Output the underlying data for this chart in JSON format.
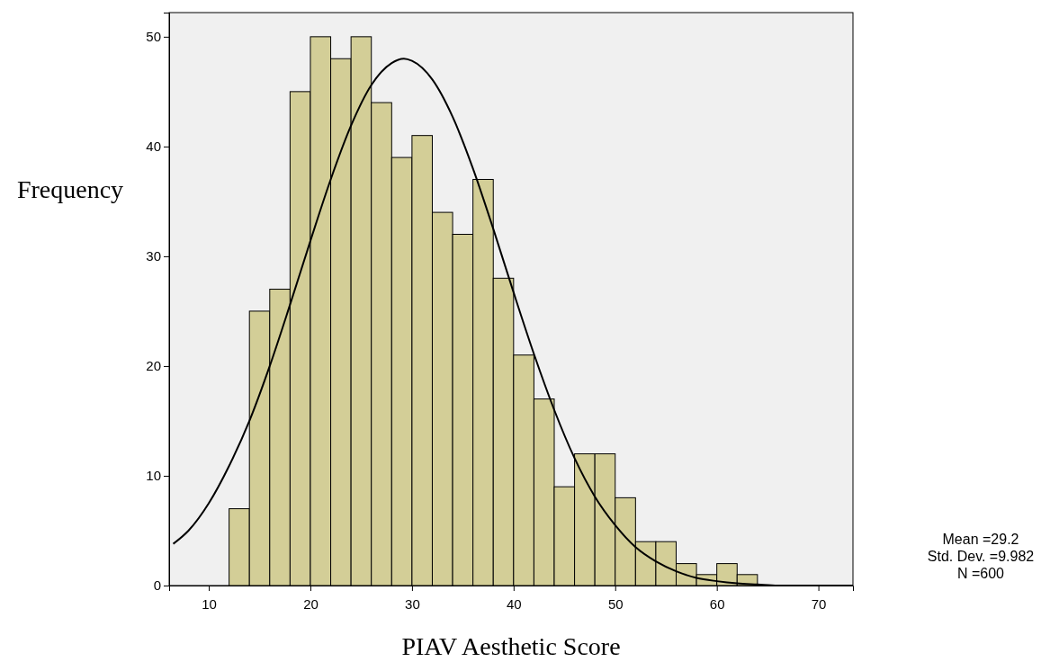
{
  "chart_data": {
    "type": "histogram",
    "xlabel": "PIAV Aesthetic Score",
    "ylabel": "Frequency",
    "bins": [
      12,
      14,
      16,
      18,
      20,
      22,
      24,
      26,
      28,
      30,
      32,
      34,
      36,
      38,
      40,
      42,
      44,
      46,
      48,
      50,
      52,
      54,
      56,
      58,
      60,
      62,
      64
    ],
    "values": [
      7,
      25,
      27,
      45,
      50,
      48,
      50,
      44,
      39,
      41,
      34,
      32,
      37,
      28,
      21,
      17,
      9,
      12,
      12,
      8,
      4,
      4,
      2,
      1,
      2,
      1
    ],
    "color": "#d3ce97",
    "series": [
      {
        "type": "line",
        "color": "#000000",
        "x": [
          6.5,
          8,
          10,
          12,
          14,
          16,
          18,
          20,
          22,
          24,
          26,
          28,
          29.2,
          30,
          32,
          34,
          36,
          38,
          40,
          42,
          44,
          46,
          48,
          50,
          52,
          54,
          56,
          58,
          60,
          62,
          64,
          66,
          68,
          70,
          73.4
        ],
        "values": [
          3.8,
          5.0,
          7.5,
          10.9,
          15.0,
          20.0,
          25.6,
          31.4,
          37.0,
          41.9,
          45.6,
          47.6,
          48.0,
          47.8,
          46.1,
          42.7,
          38.0,
          32.5,
          26.7,
          21.1,
          16.0,
          11.6,
          8.1,
          5.5,
          3.5,
          2.2,
          1.3,
          0.7,
          0.4,
          0.2,
          0.1,
          0,
          0,
          0,
          0
        ]
      }
    ],
    "marker": "none",
    "xlim": [
      6.1,
      73.4
    ],
    "ylim": [
      0,
      52.2
    ],
    "xticks": [
      10,
      20,
      30,
      40,
      50,
      60,
      70
    ],
    "yticks": [
      0,
      10,
      20,
      30,
      40,
      50
    ],
    "grid": false,
    "annotations": [
      "Mean =29.2",
      "Std. Dev. =9.982",
      "N =600"
    ]
  }
}
